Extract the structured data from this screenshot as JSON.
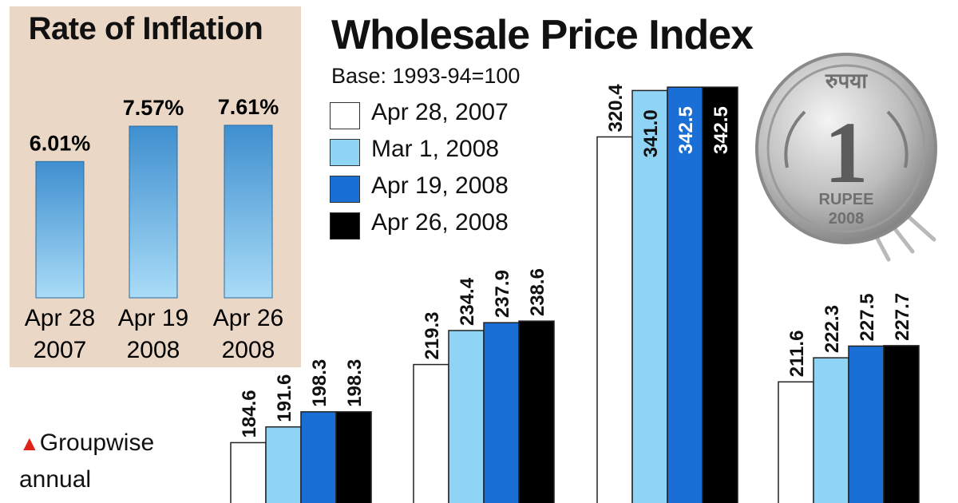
{
  "inflation_panel": {
    "title": "Rate of Inflation"
  },
  "wpi_panel": {
    "title": "Wholesale Price Index",
    "base": "Base: 1993-94=100"
  },
  "note": {
    "marker": "▲",
    "line1": "Groupwise",
    "line2": "annual"
  },
  "coin": {
    "top_text": "रुपया",
    "numeral": "1",
    "bottom_text": "RUPEE",
    "year": "2008"
  },
  "colors": {
    "panel_bg": "#ead7c5",
    "series_white": "#ffffff",
    "series_light_blue": "#8fd3f5",
    "series_blue": "#1a6fd6",
    "series_black": "#000000",
    "inflation_bar": "#5aaee0"
  },
  "chart_data": [
    {
      "type": "bar",
      "title": "Rate of Inflation",
      "categories": [
        "Apr 28\n2007",
        "Apr 19\n2008",
        "Apr 26\n2008"
      ],
      "values": [
        6.01,
        7.57,
        7.61
      ],
      "data_labels": [
        "6.01%",
        "7.57%",
        "7.61%"
      ],
      "unit": "%",
      "ylim": [
        0,
        8
      ],
      "grid": false
    },
    {
      "type": "bar",
      "title": "Wholesale Price Index",
      "subtitle": "Base: 1993-94=100",
      "legend_position": "top-left",
      "grid": false,
      "ylim": [
        150,
        345
      ],
      "series": [
        {
          "name": "Apr 28, 2007",
          "color": "#ffffff",
          "values": [
            184.6,
            219.3,
            320.4,
            211.6
          ]
        },
        {
          "name": "Mar 1, 2008",
          "color": "#8fd3f5",
          "values": [
            191.6,
            234.4,
            341.0,
            222.3
          ]
        },
        {
          "name": "Apr 19, 2008",
          "color": "#1a6fd6",
          "values": [
            198.3,
            237.9,
            342.5,
            227.5
          ]
        },
        {
          "name": "Apr 26, 2008",
          "color": "#000000",
          "values": [
            198.3,
            238.6,
            342.5,
            227.7
          ]
        }
      ],
      "data_labels": [
        [
          "184.6",
          "191.6",
          "198.3",
          "198.3"
        ],
        [
          "219.3",
          "234.4",
          "237.9",
          "238.6"
        ],
        [
          "320.4",
          "341.0",
          "342.5",
          "342.5"
        ],
        [
          "211.6",
          "222.3",
          "227.5",
          "227.7"
        ]
      ]
    }
  ]
}
